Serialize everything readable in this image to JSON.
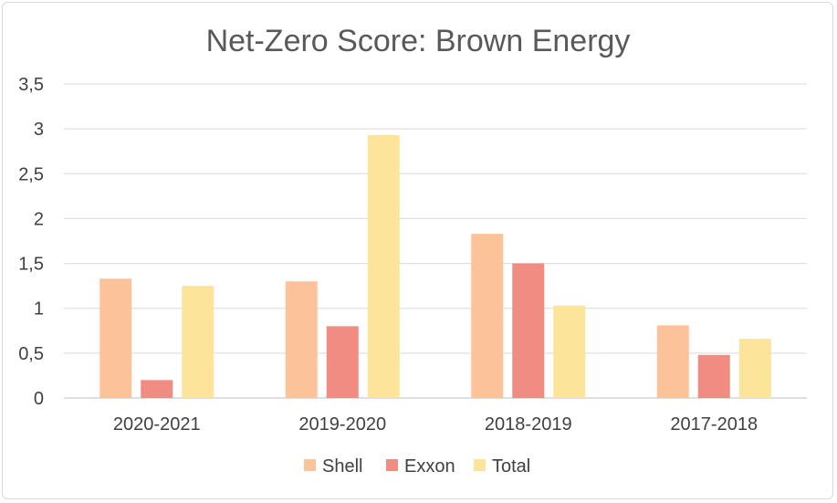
{
  "chart_data": {
    "type": "bar",
    "title": "Net-Zero Score: Brown Energy",
    "xlabel": "",
    "ylabel": "",
    "categories": [
      "2020-2021",
      "2019-2020",
      "2018-2019",
      "2017-2018"
    ],
    "series": [
      {
        "name": "Shell",
        "color": "#fcc39a",
        "values": [
          1.33,
          1.3,
          1.83,
          0.81
        ]
      },
      {
        "name": "Exxon",
        "color": "#f08c82",
        "values": [
          0.2,
          0.8,
          1.5,
          0.48
        ]
      },
      {
        "name": "Total",
        "color": "#fde49b",
        "values": [
          1.25,
          2.93,
          1.03,
          0.66
        ]
      }
    ],
    "ylim": [
      0,
      3.5
    ],
    "yticks": [
      "0",
      "0,5",
      "1",
      "1,5",
      "2",
      "2,5",
      "3",
      "3,5"
    ],
    "ytick_values": [
      0,
      0.5,
      1,
      1.5,
      2,
      2.5,
      3,
      3.5
    ],
    "grid": true,
    "legend_position": "bottom"
  }
}
